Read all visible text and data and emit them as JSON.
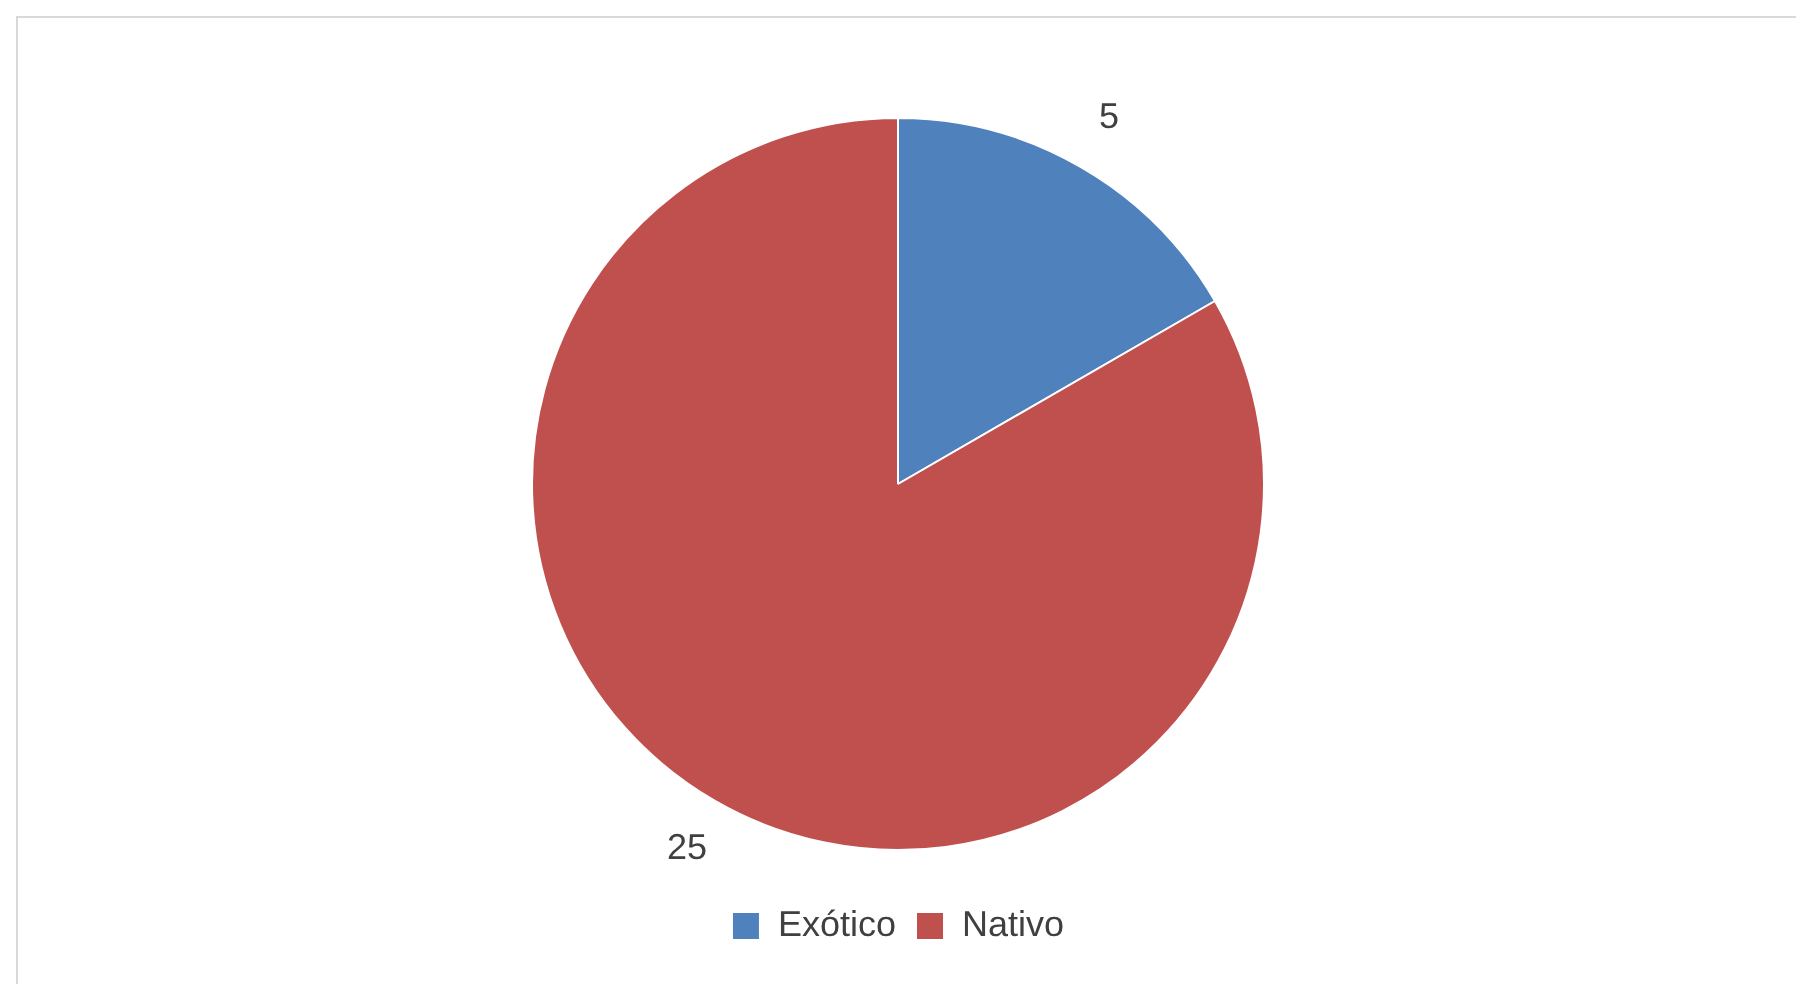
{
  "chart_data": {
    "type": "pie",
    "categories": [
      "Exótico",
      "Nativo"
    ],
    "values": [
      5,
      25
    ],
    "colors": [
      "#4f81bd",
      "#c0504d"
    ],
    "data_labels": true,
    "legend": "bottom"
  }
}
